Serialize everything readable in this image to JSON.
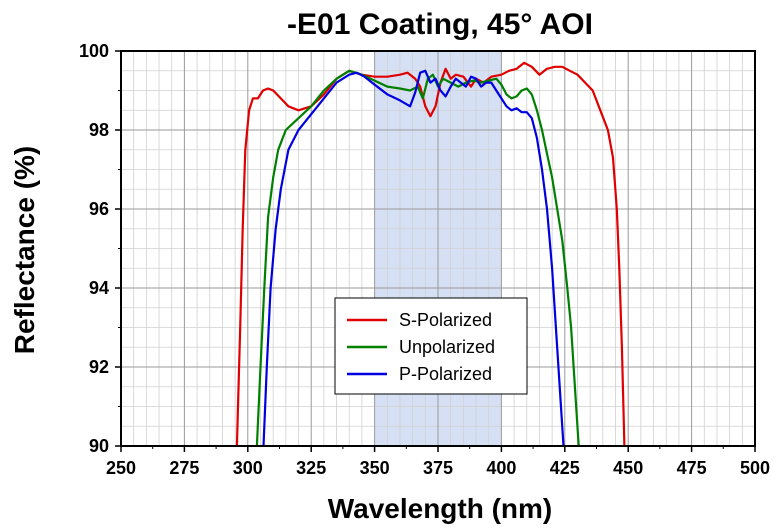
{
  "chart_data": {
    "type": "line",
    "title": "-E01 Coating, 45° AOI",
    "xlabel": "Wavelength (nm)",
    "ylabel": "Reflectance (%)",
    "xlim": [
      250,
      500
    ],
    "ylim": [
      90,
      100
    ],
    "x_ticks": [
      250,
      275,
      300,
      325,
      350,
      375,
      400,
      425,
      450,
      475,
      500
    ],
    "y_ticks": [
      90,
      92,
      94,
      96,
      98,
      100
    ],
    "x_minor_step": 5,
    "y_minor_step": 0.5,
    "grid": true,
    "highlight_band": {
      "x_start": 350,
      "x_end": 400,
      "color": "#d6e0f5"
    },
    "legend_position": "center",
    "series": [
      {
        "name": "S-Polarized",
        "color": "#e00000",
        "points": [
          [
            295.7,
            90.0
          ],
          [
            297,
            93.0
          ],
          [
            298,
            95.5
          ],
          [
            299,
            97.5
          ],
          [
            300.5,
            98.5
          ],
          [
            302,
            98.8
          ],
          [
            304,
            98.8
          ],
          [
            306,
            99.0
          ],
          [
            308,
            99.05
          ],
          [
            310,
            99.0
          ],
          [
            313,
            98.8
          ],
          [
            316,
            98.6
          ],
          [
            320,
            98.5
          ],
          [
            325,
            98.6
          ],
          [
            330,
            98.9
          ],
          [
            335,
            99.3
          ],
          [
            340,
            99.5
          ],
          [
            345,
            99.4
          ],
          [
            350,
            99.35
          ],
          [
            355,
            99.35
          ],
          [
            360,
            99.4
          ],
          [
            363,
            99.45
          ],
          [
            366,
            99.3
          ],
          [
            368,
            99.1
          ],
          [
            370,
            98.6
          ],
          [
            372,
            98.35
          ],
          [
            374,
            98.6
          ],
          [
            376,
            99.2
          ],
          [
            378,
            99.55
          ],
          [
            380,
            99.3
          ],
          [
            382,
            99.4
          ],
          [
            385,
            99.35
          ],
          [
            388,
            99.1
          ],
          [
            390,
            99.3
          ],
          [
            393,
            99.2
          ],
          [
            396,
            99.35
          ],
          [
            400,
            99.4
          ],
          [
            403,
            99.5
          ],
          [
            406,
            99.55
          ],
          [
            409,
            99.7
          ],
          [
            412,
            99.6
          ],
          [
            415,
            99.4
          ],
          [
            418,
            99.55
          ],
          [
            421,
            99.6
          ],
          [
            424,
            99.6
          ],
          [
            427,
            99.5
          ],
          [
            430,
            99.4
          ],
          [
            433,
            99.2
          ],
          [
            436,
            99.0
          ],
          [
            439,
            98.5
          ],
          [
            442,
            98.0
          ],
          [
            444,
            97.3
          ],
          [
            445.5,
            96.0
          ],
          [
            446.5,
            94.5
          ],
          [
            447.5,
            92.5
          ],
          [
            448.5,
            90.0
          ]
        ]
      },
      {
        "name": "Unpolarized",
        "color": "#008000",
        "points": [
          [
            303.6,
            90.0
          ],
          [
            305,
            92.0
          ],
          [
            306.5,
            94.0
          ],
          [
            308,
            95.8
          ],
          [
            310,
            96.8
          ],
          [
            312,
            97.5
          ],
          [
            315,
            98.0
          ],
          [
            320,
            98.3
          ],
          [
            325,
            98.6
          ],
          [
            330,
            99.0
          ],
          [
            335,
            99.3
          ],
          [
            340,
            99.5
          ],
          [
            345,
            99.4
          ],
          [
            350,
            99.25
          ],
          [
            355,
            99.1
          ],
          [
            360,
            99.05
          ],
          [
            364,
            99.0
          ],
          [
            367,
            99.1
          ],
          [
            369,
            98.8
          ],
          [
            371,
            99.3
          ],
          [
            373,
            99.4
          ],
          [
            375,
            99.1
          ],
          [
            377,
            99.3
          ],
          [
            380,
            99.2
          ],
          [
            383,
            99.1
          ],
          [
            386,
            99.2
          ],
          [
            389,
            99.25
          ],
          [
            392,
            99.2
          ],
          [
            395,
            99.25
          ],
          [
            398,
            99.3
          ],
          [
            400,
            99.15
          ],
          [
            402,
            98.9
          ],
          [
            404,
            98.8
          ],
          [
            406,
            98.85
          ],
          [
            408,
            99.0
          ],
          [
            410,
            99.05
          ],
          [
            412,
            98.9
          ],
          [
            414,
            98.5
          ],
          [
            416,
            98.0
          ],
          [
            418,
            97.4
          ],
          [
            420,
            96.8
          ],
          [
            422,
            96.0
          ],
          [
            424,
            95.2
          ],
          [
            426,
            94.0
          ],
          [
            427.5,
            93.0
          ],
          [
            429,
            91.5
          ],
          [
            430.5,
            90.0
          ]
        ]
      },
      {
        "name": "P-Polarized",
        "color": "#0000e0",
        "points": [
          [
            306.2,
            90.0
          ],
          [
            307.5,
            92.0
          ],
          [
            309,
            94.0
          ],
          [
            311,
            95.5
          ],
          [
            313,
            96.5
          ],
          [
            316,
            97.5
          ],
          [
            320,
            98.0
          ],
          [
            325,
            98.4
          ],
          [
            330,
            98.8
          ],
          [
            335,
            99.2
          ],
          [
            340,
            99.4
          ],
          [
            343,
            99.45
          ],
          [
            346,
            99.35
          ],
          [
            350,
            99.15
          ],
          [
            355,
            98.9
          ],
          [
            360,
            98.75
          ],
          [
            364,
            98.6
          ],
          [
            366,
            98.95
          ],
          [
            368,
            99.45
          ],
          [
            370,
            99.5
          ],
          [
            372,
            99.2
          ],
          [
            374,
            99.3
          ],
          [
            376,
            99.0
          ],
          [
            378,
            98.85
          ],
          [
            380,
            99.1
          ],
          [
            382,
            99.3
          ],
          [
            384,
            99.2
          ],
          [
            386,
            99.1
          ],
          [
            388,
            99.35
          ],
          [
            390,
            99.3
          ],
          [
            392,
            99.1
          ],
          [
            394,
            99.2
          ],
          [
            396,
            99.2
          ],
          [
            398,
            99.0
          ],
          [
            400,
            98.8
          ],
          [
            402,
            98.6
          ],
          [
            404,
            98.5
          ],
          [
            406,
            98.55
          ],
          [
            408,
            98.45
          ],
          [
            410,
            98.45
          ],
          [
            412,
            98.3
          ],
          [
            414,
            97.8
          ],
          [
            416,
            97.0
          ],
          [
            418,
            96.0
          ],
          [
            420,
            94.5
          ],
          [
            421.5,
            93.0
          ],
          [
            423,
            91.5
          ],
          [
            424.5,
            90.0
          ]
        ]
      }
    ]
  }
}
